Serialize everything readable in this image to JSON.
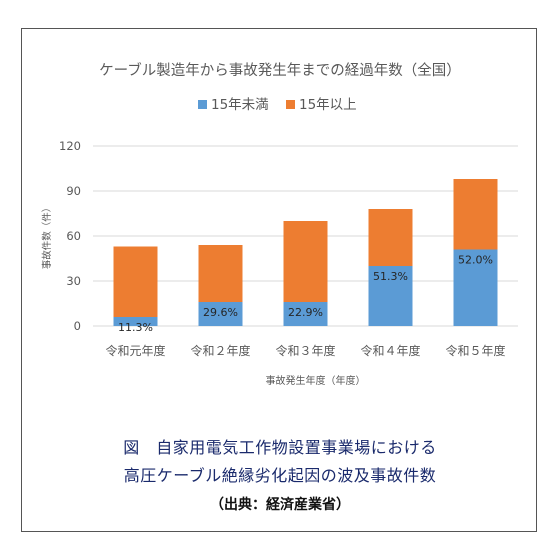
{
  "caption": {
    "line1": "図　自家用電気工作物設置事業場における",
    "line2": "高圧ケーブル絶縁劣化起因の波及事故件数",
    "source": "（出典：経済産業省）"
  },
  "colors": {
    "under15": "#5b9bd5",
    "over15": "#ed7d31",
    "grid": "#d9d9d9",
    "text": "#595959"
  },
  "chart_data": {
    "type": "bar",
    "stacked": true,
    "title": "ケーブル製造年から事故発生年までの経過年数（全国）",
    "xlabel": "事故発生年度（年度）",
    "ylabel": "事故件数（件）",
    "ylim": [
      0,
      120
    ],
    "yticks": [
      0,
      30,
      60,
      90,
      120
    ],
    "grid": true,
    "legend_position": "top",
    "categories": [
      "令和元年度",
      "令和２年度",
      "令和３年度",
      "令和４年度",
      "令和５年度"
    ],
    "series": [
      {
        "name": "15年未満",
        "values": [
          6,
          16,
          16,
          40,
          51
        ]
      },
      {
        "name": "15年以上",
        "values": [
          47,
          38,
          54,
          38,
          47
        ]
      }
    ],
    "data_labels": [
      "11.3%",
      "29.6%",
      "22.9%",
      "51.3%",
      "52.0%"
    ]
  }
}
